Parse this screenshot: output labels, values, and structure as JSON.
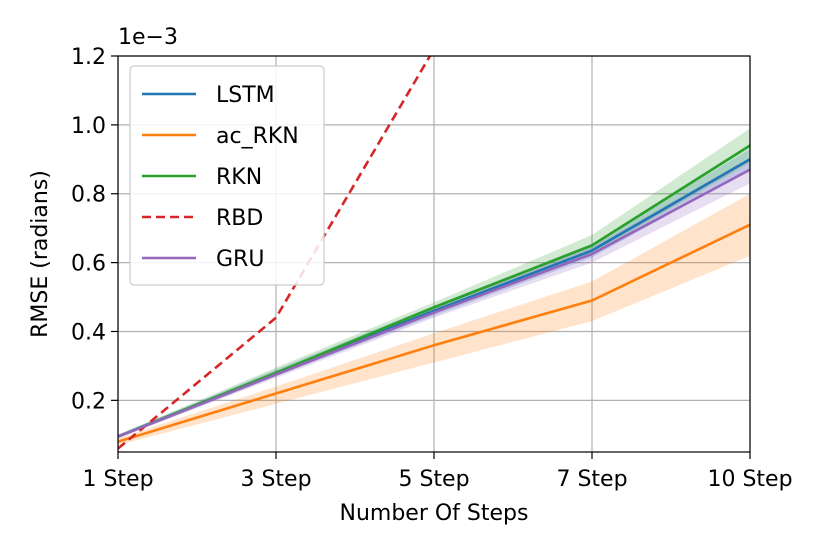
{
  "chart_data": {
    "type": "line",
    "categories": [
      "1 Step",
      "3 Step",
      "5 Step",
      "7 Step",
      "10 Step"
    ],
    "xlabel": "Number Of Steps",
    "ylabel": "RMSE (radians)",
    "y_scale_label": "1e−3",
    "ylim": [
      0.05,
      1.2
    ],
    "yticks": [
      0.2,
      0.4,
      0.6,
      0.8,
      1.0,
      1.2
    ],
    "ytick_labels": [
      "0.2",
      "0.4",
      "0.6",
      "0.8",
      "1.0",
      "1.2"
    ],
    "grid": true,
    "legend_position": "top-left",
    "series": [
      {
        "name": "LSTM",
        "color": "#1f77b4",
        "style": "solid",
        "values": [
          0.095,
          0.28,
          0.46,
          0.635,
          0.9
        ],
        "lower": [
          0.09,
          0.27,
          0.445,
          0.615,
          0.87
        ],
        "upper": [
          0.1,
          0.29,
          0.475,
          0.655,
          0.93
        ]
      },
      {
        "name": "ac_RKN",
        "color": "#ff7f0e",
        "style": "solid",
        "values": [
          0.08,
          0.22,
          0.36,
          0.49,
          0.71
        ],
        "lower": [
          0.07,
          0.19,
          0.31,
          0.43,
          0.62
        ],
        "upper": [
          0.09,
          0.24,
          0.395,
          0.545,
          0.8
        ]
      },
      {
        "name": "RKN",
        "color": "#2ca02c",
        "style": "solid",
        "values": [
          0.095,
          0.28,
          0.47,
          0.65,
          0.94
        ],
        "lower": [
          0.09,
          0.27,
          0.455,
          0.625,
          0.89
        ],
        "upper": [
          0.1,
          0.295,
          0.485,
          0.68,
          0.99
        ]
      },
      {
        "name": "RBD",
        "color": "#d62728",
        "style": "dashed",
        "values": [
          0.06,
          0.44,
          1.22,
          null,
          null
        ]
      },
      {
        "name": "GRU",
        "color": "#9467bd",
        "style": "solid",
        "values": [
          0.095,
          0.275,
          0.455,
          0.625,
          0.87
        ],
        "lower": [
          0.09,
          0.265,
          0.44,
          0.6,
          0.83
        ],
        "upper": [
          0.1,
          0.285,
          0.47,
          0.645,
          0.905
        ]
      }
    ]
  }
}
